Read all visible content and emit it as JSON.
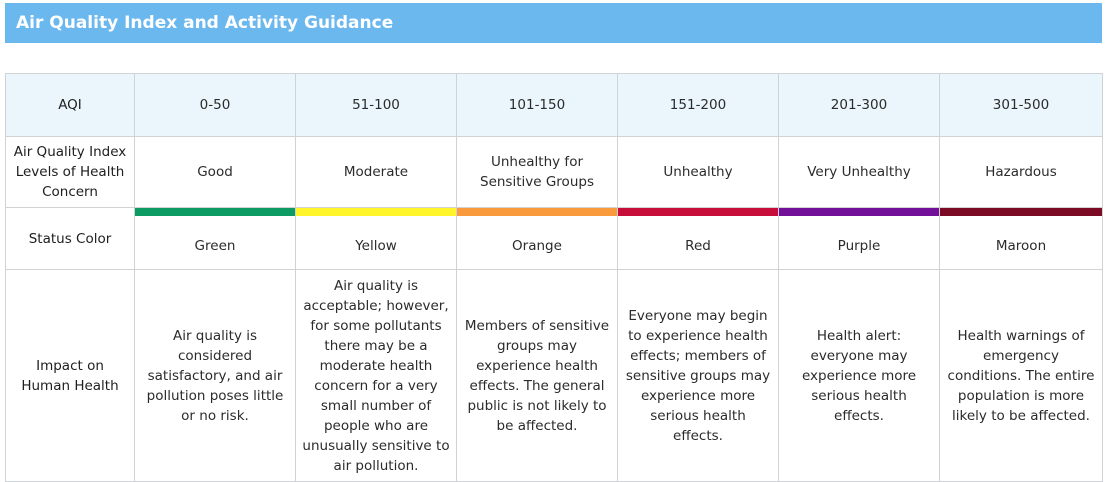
{
  "title": "Air Quality Index and Activity Guidance",
  "row_labels": {
    "aqi": "AQI",
    "levels": "Air Quality Index Levels of Health Concern",
    "status_color": "Status Color",
    "impact": "Impact on Human Health"
  },
  "categories": [
    {
      "range": "0-50",
      "level": "Good",
      "color_name": "Green",
      "color": "#0d9a63",
      "impact": "Air quality is considered satisfactory, and air pollution poses little or no risk."
    },
    {
      "range": "51-100",
      "level": "Moderate",
      "color_name": "Yellow",
      "color": "#fff52a",
      "impact": "Air quality is acceptable; however, for some pollutants there may be a moderate health concern for a very small number of people who are unusually sensitive to air pollution."
    },
    {
      "range": "101-150",
      "level": "Unhealthy for Sensitive Groups",
      "color_name": "Orange",
      "color": "#f99a3c",
      "impact": "Members of sensitive groups may experience health effects. The general public is not likely to be affected."
    },
    {
      "range": "151-200",
      "level": "Unhealthy",
      "color_name": "Red",
      "color": "#c70d3a",
      "impact": "Everyone may begin to experience health effects; members of sensitive groups may experience more serious health effects."
    },
    {
      "range": "201-300",
      "level": "Very Unhealthy",
      "color_name": "Purple",
      "color": "#72109a",
      "impact": "Health alert: everyone may experience more serious health effects."
    },
    {
      "range": "301-500",
      "level": "Hazardous",
      "color_name": "Maroon",
      "color": "#7b0a24",
      "impact": "Health warnings of emergency conditions. The entire population is more likely to be affected."
    }
  ]
}
